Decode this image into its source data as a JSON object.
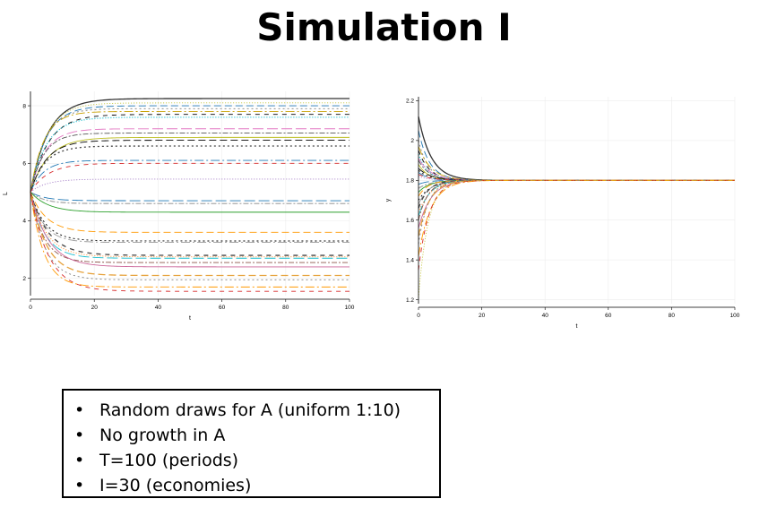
{
  "slide": {
    "title": "Simulation I"
  },
  "bullets": [
    "Random draws for A (uniform 1:10)",
    "No growth in A",
    "T=100 (periods)",
    "I=30 (economies)"
  ],
  "bullet_symbol": "•",
  "chart_data": [
    {
      "type": "line",
      "xlabel": "t",
      "ylabel": "L",
      "xlim": [
        0,
        100
      ],
      "ylim": [
        1.4,
        8.5
      ],
      "xticks": [
        0,
        20,
        40,
        60,
        80,
        100
      ],
      "yticks": [
        2,
        4,
        6,
        8
      ],
      "grid": true,
      "start_value": 5.0,
      "series_count": 30,
      "steady_states": [
        8.25,
        8.0,
        7.9,
        7.8,
        7.7,
        7.6,
        7.2,
        7.05,
        6.9,
        6.8,
        6.6,
        6.1,
        6.0,
        5.45,
        4.7,
        4.6,
        4.3,
        3.6,
        3.3,
        3.25,
        2.8,
        2.75,
        2.7,
        2.55,
        2.4,
        2.1,
        1.95,
        1.7,
        1.55,
        8.1
      ],
      "colors": [
        "#333333",
        "#1f77b4",
        "#7f7f7f",
        "#c8a000",
        "#000000",
        "#17becf",
        "#e377c2",
        "#555555",
        "#bcbd22",
        "#000000",
        "#444444",
        "#1f77b4",
        "#d62728",
        "#9467bd",
        "#1f77b4",
        "#aaaaaa",
        "#2ca02c",
        "#ff9900",
        "#000000",
        "#999999",
        "#444444",
        "#ff7f0e",
        "#17becf",
        "#8c564b",
        "#cc6699",
        "#e6a23c",
        "#7f7f7f",
        "#ff9900",
        "#d62728",
        "#bcbd22"
      ]
    },
    {
      "type": "line",
      "xlabel": "t",
      "ylabel": "y",
      "xlim": [
        0,
        100
      ],
      "ylim": [
        1.18,
        2.22
      ],
      "xticks": [
        0,
        20,
        40,
        60,
        80,
        100
      ],
      "yticks": [
        1.2,
        1.4,
        1.6,
        1.8,
        2.0,
        2.2
      ],
      "ytick_labels": [
        "1.2",
        "1.4",
        "1.6",
        "1.8",
        "2",
        "2.2"
      ],
      "grid": true,
      "steady_state": 1.8,
      "series_count": 30,
      "start_values": [
        2.12,
        2.05,
        2.0,
        1.97,
        1.95,
        1.93,
        1.91,
        1.9,
        1.88,
        1.86,
        1.85,
        1.84,
        1.83,
        1.82,
        1.78,
        1.76,
        1.74,
        1.72,
        1.7,
        1.68,
        1.66,
        1.64,
        1.62,
        1.6,
        1.56,
        1.52,
        1.48,
        1.42,
        1.35,
        1.21
      ],
      "colors": [
        "#333333",
        "#1f77b4",
        "#7f7f7f",
        "#c8a000",
        "#000000",
        "#17becf",
        "#e377c2",
        "#555555",
        "#bcbd22",
        "#000000",
        "#444444",
        "#1f77b4",
        "#d62728",
        "#9467bd",
        "#1f77b4",
        "#aaaaaa",
        "#2ca02c",
        "#ff9900",
        "#000000",
        "#999999",
        "#444444",
        "#ff7f0e",
        "#17becf",
        "#8c564b",
        "#cc6699",
        "#e6a23c",
        "#7f7f7f",
        "#ff9900",
        "#d62728",
        "#bcbd22"
      ]
    }
  ]
}
